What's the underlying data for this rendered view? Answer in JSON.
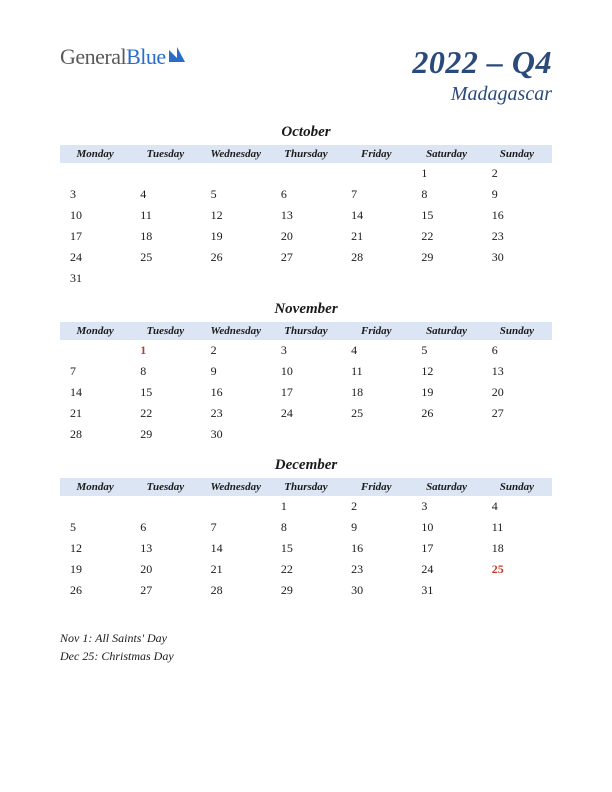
{
  "logo": {
    "part1": "General",
    "part2": "Blue"
  },
  "title": {
    "main": "2022 – Q4",
    "sub": "Madagascar"
  },
  "weekdays": [
    "Monday",
    "Tuesday",
    "Wednesday",
    "Thursday",
    "Friday",
    "Saturday",
    "Sunday"
  ],
  "colors": {
    "header_bg": "#dce5f3",
    "text": "#1a1a1a",
    "title": "#2a4a7a",
    "holiday": "#c0392b",
    "logo_gray": "#5a5a5a",
    "logo_blue": "#2a6dc9"
  },
  "months": [
    {
      "name": "October",
      "weeks": [
        [
          "",
          "",
          "",
          "",
          "",
          "1",
          "2"
        ],
        [
          "3",
          "4",
          "5",
          "6",
          "7",
          "8",
          "9"
        ],
        [
          "10",
          "11",
          "12",
          "13",
          "14",
          "15",
          "16"
        ],
        [
          "17",
          "18",
          "19",
          "20",
          "21",
          "22",
          "23"
        ],
        [
          "24",
          "25",
          "26",
          "27",
          "28",
          "29",
          "30"
        ],
        [
          "31",
          "",
          "",
          "",
          "",
          "",
          ""
        ]
      ],
      "holidays": []
    },
    {
      "name": "November",
      "weeks": [
        [
          "",
          "1",
          "2",
          "3",
          "4",
          "5",
          "6"
        ],
        [
          "7",
          "8",
          "9",
          "10",
          "11",
          "12",
          "13"
        ],
        [
          "14",
          "15",
          "16",
          "17",
          "18",
          "19",
          "20"
        ],
        [
          "21",
          "22",
          "23",
          "24",
          "25",
          "26",
          "27"
        ],
        [
          "28",
          "29",
          "30",
          "",
          "",
          "",
          ""
        ]
      ],
      "holidays": [
        "1"
      ]
    },
    {
      "name": "December",
      "weeks": [
        [
          "",
          "",
          "",
          "1",
          "2",
          "3",
          "4"
        ],
        [
          "5",
          "6",
          "7",
          "8",
          "9",
          "10",
          "11"
        ],
        [
          "12",
          "13",
          "14",
          "15",
          "16",
          "17",
          "18"
        ],
        [
          "19",
          "20",
          "21",
          "22",
          "23",
          "24",
          "25"
        ],
        [
          "26",
          "27",
          "28",
          "29",
          "30",
          "31",
          ""
        ]
      ],
      "holidays": [
        "25"
      ]
    }
  ],
  "notes": [
    "Nov 1: All Saints' Day",
    "Dec 25: Christmas Day"
  ]
}
